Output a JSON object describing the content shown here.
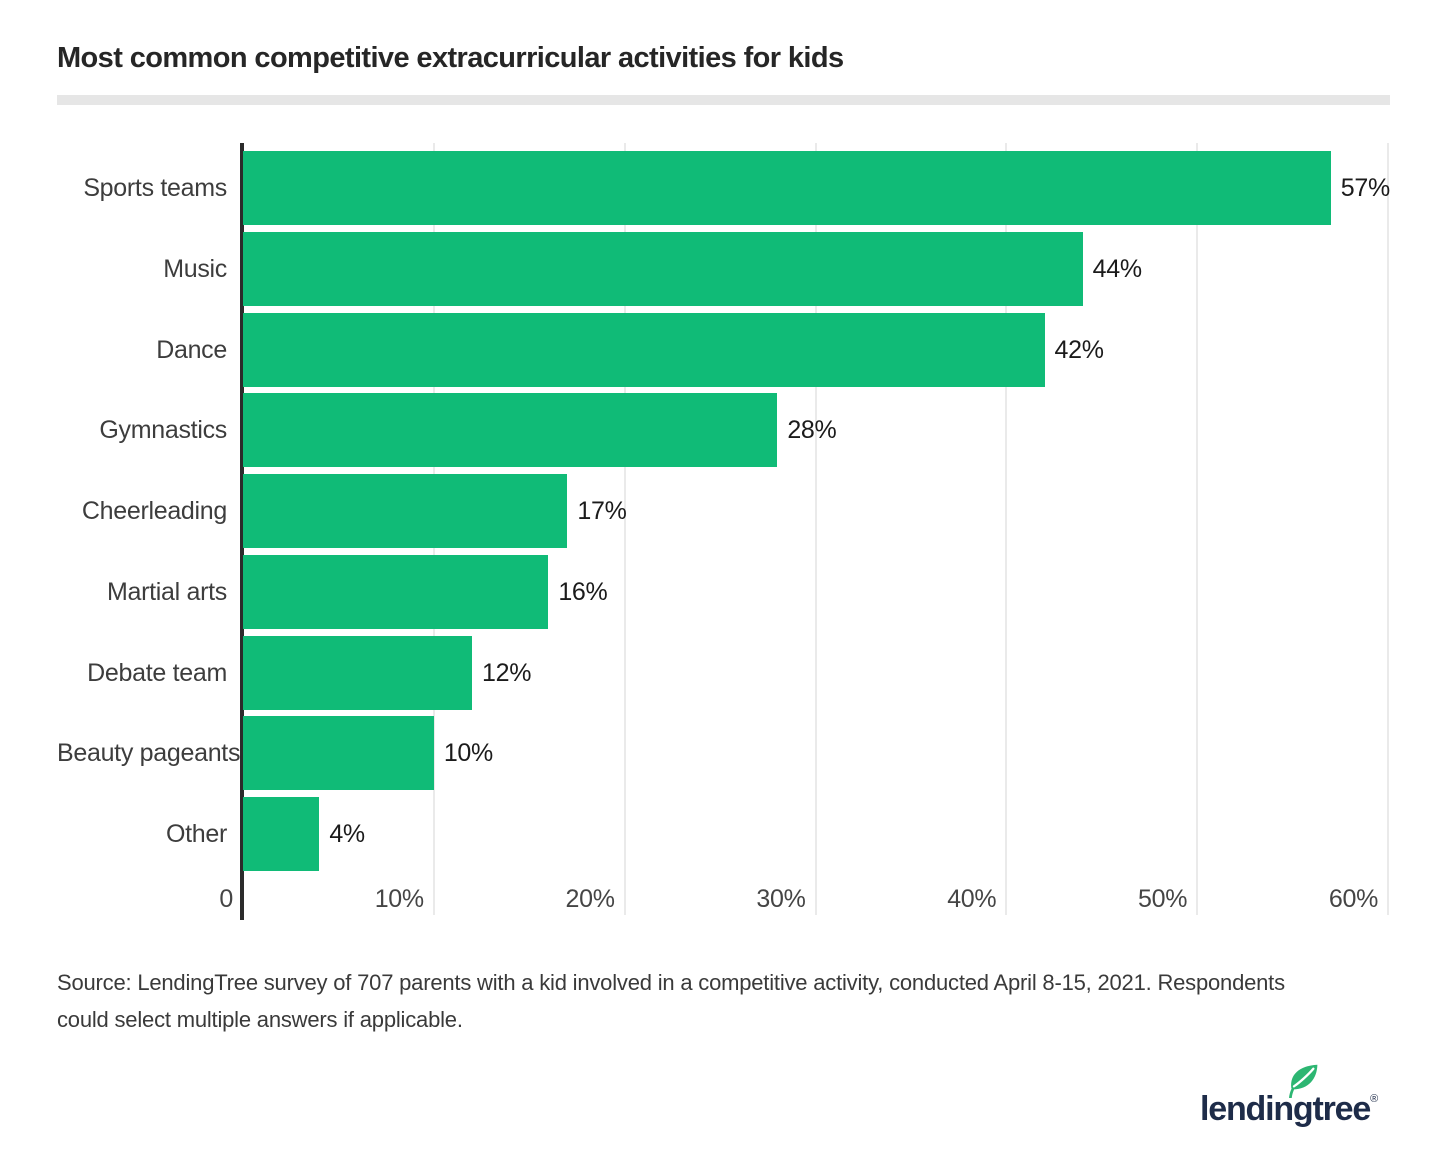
{
  "header": {
    "title": "Most common competitive extracurricular activities for kids"
  },
  "chart_data": {
    "type": "bar",
    "orientation": "horizontal",
    "title": "Most common competitive extracurricular activities for kids",
    "xlabel": "",
    "ylabel": "",
    "xlim": [
      0,
      60
    ],
    "grid": true,
    "legend": false,
    "categories": [
      "Sports teams",
      "Music",
      "Dance",
      "Gymnastics",
      "Cheerleading",
      "Martial arts",
      "Debate team",
      "Beauty pageants",
      "Other"
    ],
    "values": [
      57,
      44,
      42,
      28,
      17,
      16,
      12,
      10,
      4
    ],
    "value_labels": [
      "57%",
      "44%",
      "42%",
      "28%",
      "17%",
      "16%",
      "12%",
      "10%",
      "4%"
    ],
    "x_ticks": [
      {
        "value": 0,
        "label": "0"
      },
      {
        "value": 10,
        "label": "10%"
      },
      {
        "value": 20,
        "label": "20%"
      },
      {
        "value": 30,
        "label": "30%"
      },
      {
        "value": 40,
        "label": "40%"
      },
      {
        "value": 50,
        "label": "50%"
      },
      {
        "value": 60,
        "label": "60%"
      }
    ],
    "bar_color": "#10bb77",
    "axis_color": "#2b2b2b",
    "grid_color": "#eaeaea"
  },
  "source": {
    "lines": [
      "Source: LendingTree survey of 707 parents with a kid involved in a competitive activity, conducted April 8-15, 2021. Respondents",
      "could select multiple answers if applicable."
    ]
  },
  "logo": {
    "text": "lendingtree",
    "registered": "®",
    "navy": "#1e2c49",
    "leaf_green": "#2db672"
  }
}
